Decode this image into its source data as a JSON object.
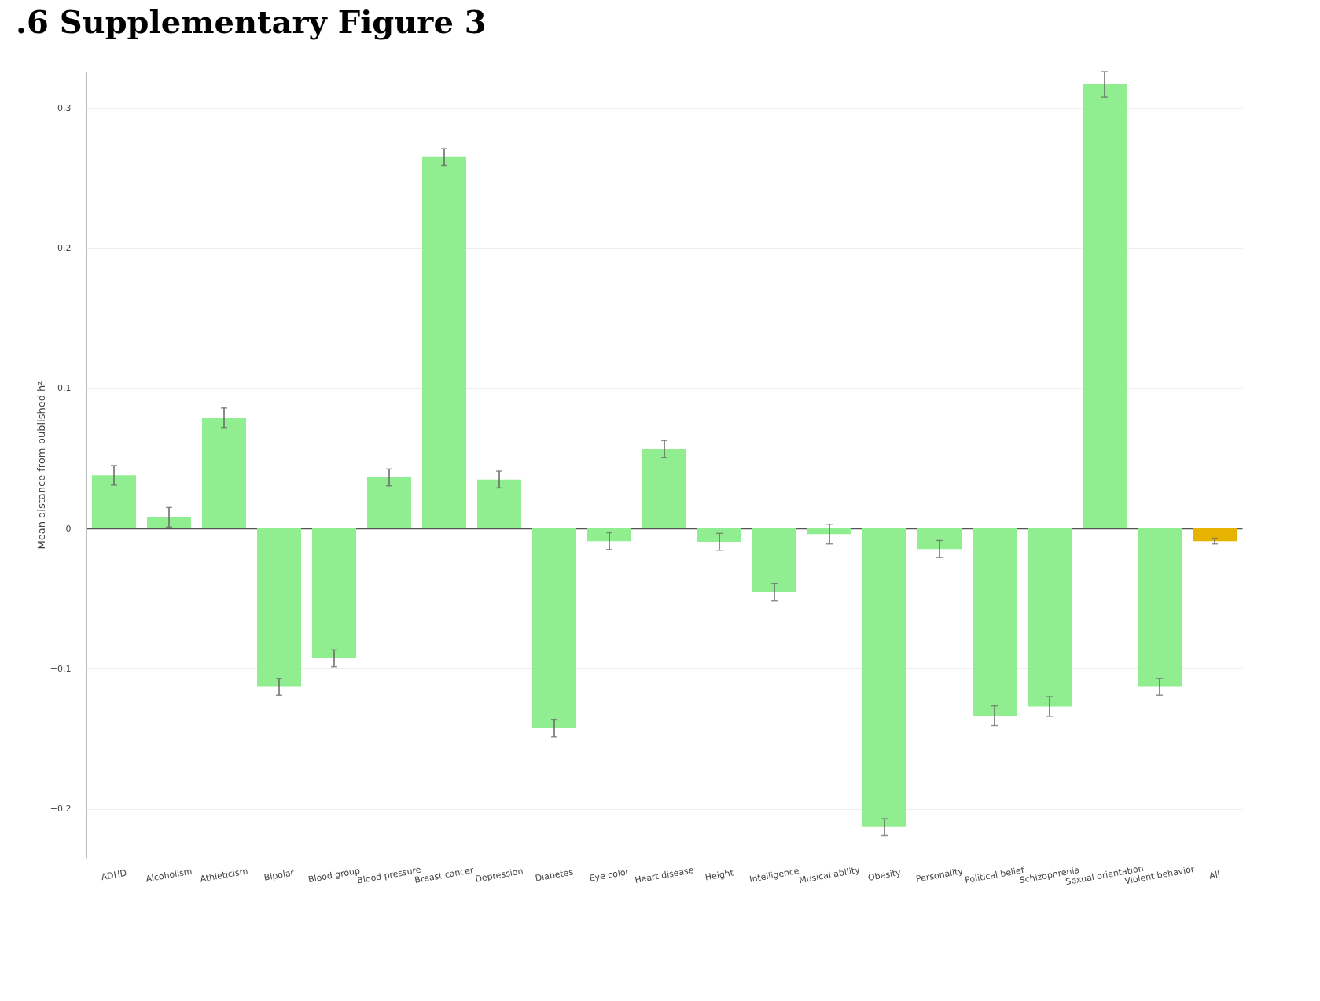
{
  "chart_data": {
    "type": "bar",
    "title": ".6 Supplementary Figure 3",
    "ylabel": "Mean distance from published h²",
    "categories": [
      "ADHD",
      "Alcoholism",
      "Athleticism",
      "Bipolar",
      "Blood group",
      "Blood pressure",
      "Breast cancer",
      "Depression",
      "Diabetes",
      "Eye color",
      "Heart disease",
      "Height",
      "Intelligence",
      "Musical ability",
      "Obesity",
      "Personality",
      "Political belief",
      "Schizophrenia",
      "Sexual orientation",
      "Violent behavior",
      "All"
    ],
    "values": [
      0.038,
      0.008,
      0.079,
      -0.113,
      -0.0925,
      0.0365,
      0.265,
      0.035,
      -0.1425,
      -0.009,
      0.0567,
      -0.0095,
      -0.0454,
      -0.004,
      -0.213,
      -0.0146,
      -0.1335,
      -0.127,
      0.317,
      -0.113,
      -0.009
    ],
    "errors": [
      0.007,
      0.007,
      0.007,
      0.006,
      0.006,
      0.006,
      0.006,
      0.006,
      0.006,
      0.006,
      0.006,
      0.006,
      0.006,
      0.007,
      0.006,
      0.006,
      0.007,
      0.007,
      0.009,
      0.006,
      0.002
    ],
    "colors": [
      "#90ee90",
      "#90ee90",
      "#90ee90",
      "#90ee90",
      "#90ee90",
      "#90ee90",
      "#90ee90",
      "#90ee90",
      "#90ee90",
      "#90ee90",
      "#90ee90",
      "#90ee90",
      "#90ee90",
      "#90ee90",
      "#90ee90",
      "#90ee90",
      "#90ee90",
      "#90ee90",
      "#90ee90",
      "#90ee90",
      "#e6b400"
    ],
    "ylim": [
      -0.235,
      0.326
    ],
    "yticks": [
      {
        "value": -0.2,
        "label": "−0.2"
      },
      {
        "value": -0.1,
        "label": "−0.1"
      },
      0,
      0.1,
      0.2,
      0.3
    ],
    "grid": "y"
  }
}
